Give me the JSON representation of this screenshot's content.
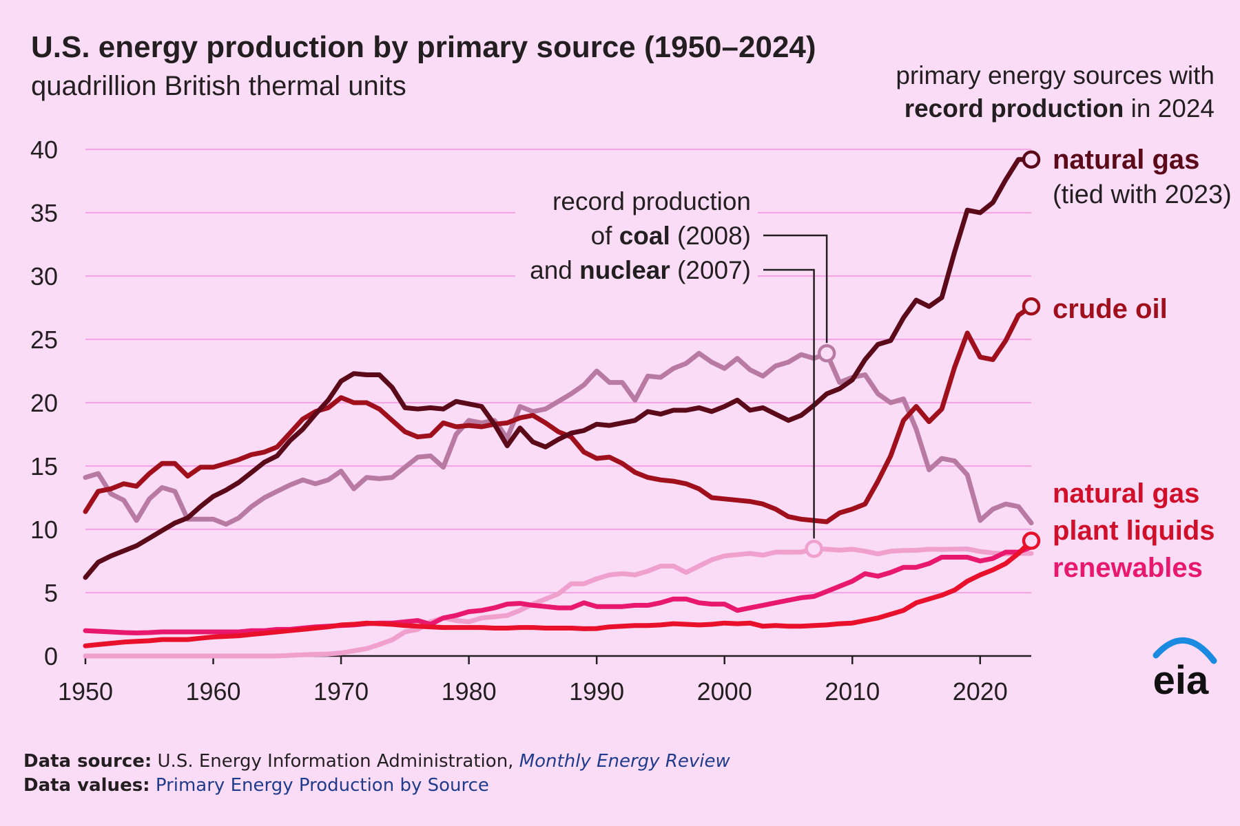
{
  "title": "U.S. energy production by primary source (1950–2024)",
  "subtitle": "quadrillion British thermal units",
  "record_note": {
    "line1": "primary energy sources with",
    "line2_bold": "record production",
    "line2_rest": " in 2024"
  },
  "coal_nuclear_note": {
    "line1": "record production",
    "line2_pre": "of ",
    "line2_bold": "coal",
    "line2_post": " (2008)",
    "line3_pre": "and ",
    "line3_bold": "nuclear",
    "line3_post": " (2007)"
  },
  "series_labels": {
    "natural_gas": "natural gas",
    "natural_gas_note": "(tied with 2023)",
    "crude_oil": "crude oil",
    "ngpl_line1": "natural gas",
    "ngpl_line2": "plant liquids",
    "renewables": "renewables"
  },
  "footer": {
    "source_label": "Data source:",
    "source_text": " U.S. Energy Information Administration, ",
    "source_link": "Monthly Energy Review",
    "values_label": "Data values:",
    "values_link": "Primary Energy Production by Source"
  },
  "logo_text": "eia",
  "chart_data": {
    "type": "line",
    "xlabel": "",
    "ylabel": "",
    "xlim": [
      1950,
      2024
    ],
    "ylim": [
      0,
      40
    ],
    "x_ticks": [
      1950,
      1960,
      1970,
      1980,
      1990,
      2000,
      2010,
      2020
    ],
    "y_ticks": [
      0,
      5,
      10,
      15,
      20,
      25,
      30,
      35,
      40
    ],
    "grid": "horizontal",
    "colors": {
      "coal": "#b87aa3",
      "nuclear": "#f0a0cc",
      "crude_oil": "#a0101c",
      "natural_gas": "#5a0a18",
      "ngpl": "#e8102a",
      "renewables": "#e8186e"
    },
    "x": [
      1950,
      1951,
      1952,
      1953,
      1954,
      1955,
      1956,
      1957,
      1958,
      1959,
      1960,
      1961,
      1962,
      1963,
      1964,
      1965,
      1966,
      1967,
      1968,
      1969,
      1970,
      1971,
      1972,
      1973,
      1974,
      1975,
      1976,
      1977,
      1978,
      1979,
      1980,
      1981,
      1982,
      1983,
      1984,
      1985,
      1986,
      1987,
      1988,
      1989,
      1990,
      1991,
      1992,
      1993,
      1994,
      1995,
      1996,
      1997,
      1998,
      1999,
      2000,
      2001,
      2002,
      2003,
      2004,
      2005,
      2006,
      2007,
      2008,
      2009,
      2010,
      2011,
      2012,
      2013,
      2014,
      2015,
      2016,
      2017,
      2018,
      2019,
      2020,
      2021,
      2022,
      2023,
      2024
    ],
    "series": [
      {
        "name": "coal",
        "values": [
          14.1,
          14.4,
          12.8,
          12.3,
          10.7,
          12.4,
          13.3,
          13.0,
          10.8,
          10.8,
          10.8,
          10.4,
          10.9,
          11.8,
          12.5,
          13.0,
          13.5,
          13.9,
          13.6,
          13.9,
          14.6,
          13.2,
          14.1,
          14.0,
          14.1,
          14.9,
          15.7,
          15.8,
          14.9,
          17.5,
          18.6,
          18.4,
          18.6,
          17.2,
          19.7,
          19.3,
          19.5,
          20.1,
          20.7,
          21.4,
          22.5,
          21.6,
          21.6,
          20.2,
          22.1,
          22.0,
          22.7,
          23.1,
          23.9,
          23.2,
          22.7,
          23.5,
          22.6,
          22.1,
          22.9,
          23.2,
          23.8,
          23.5,
          23.9,
          21.6,
          22.0,
          22.2,
          20.7,
          20.0,
          20.3,
          17.9,
          14.7,
          15.6,
          15.4,
          14.3,
          10.7,
          11.6,
          12.0,
          11.8,
          10.5
        ]
      },
      {
        "name": "nuclear",
        "values": [
          0,
          0,
          0,
          0,
          0,
          0,
          0,
          0,
          0,
          0,
          0,
          0,
          0,
          0,
          0,
          0,
          0.05,
          0.09,
          0.13,
          0.15,
          0.24,
          0.41,
          0.58,
          0.91,
          1.27,
          1.9,
          2.1,
          2.7,
          3.0,
          2.8,
          2.7,
          3.0,
          3.1,
          3.2,
          3.6,
          4.1,
          4.5,
          4.9,
          5.7,
          5.7,
          6.1,
          6.4,
          6.5,
          6.4,
          6.7,
          7.1,
          7.1,
          6.6,
          7.1,
          7.6,
          7.9,
          8.0,
          8.1,
          7.96,
          8.2,
          8.2,
          8.2,
          8.46,
          8.43,
          8.36,
          8.43,
          8.27,
          8.06,
          8.27,
          8.33,
          8.34,
          8.43,
          8.42,
          8.44,
          8.45,
          8.25,
          8.13,
          8.06,
          8.1,
          8.1
        ]
      },
      {
        "name": "crude oil",
        "values": [
          11.4,
          13.0,
          13.2,
          13.6,
          13.4,
          14.4,
          15.2,
          15.2,
          14.2,
          14.9,
          14.9,
          15.2,
          15.5,
          15.9,
          16.1,
          16.5,
          17.6,
          18.7,
          19.3,
          19.6,
          20.4,
          20.0,
          20.0,
          19.5,
          18.6,
          17.7,
          17.3,
          17.4,
          18.4,
          18.1,
          18.2,
          18.1,
          18.3,
          18.4,
          18.8,
          19.0,
          18.4,
          17.7,
          17.3,
          16.1,
          15.6,
          15.7,
          15.2,
          14.5,
          14.1,
          13.9,
          13.8,
          13.6,
          13.2,
          12.5,
          12.4,
          12.3,
          12.2,
          12.0,
          11.6,
          11.0,
          10.8,
          10.7,
          10.6,
          11.3,
          11.6,
          12.0,
          13.8,
          15.8,
          18.6,
          19.7,
          18.5,
          19.5,
          22.8,
          25.5,
          23.6,
          23.4,
          24.9,
          26.9,
          27.6
        ]
      },
      {
        "name": "natural gas",
        "values": [
          6.2,
          7.4,
          7.9,
          8.3,
          8.7,
          9.3,
          9.9,
          10.5,
          10.9,
          11.8,
          12.6,
          13.1,
          13.7,
          14.5,
          15.3,
          15.8,
          17.0,
          17.9,
          19.1,
          20.2,
          21.7,
          22.3,
          22.2,
          22.2,
          21.2,
          19.6,
          19.5,
          19.6,
          19.5,
          20.1,
          19.9,
          19.7,
          18.3,
          16.6,
          18.0,
          16.9,
          16.5,
          17.1,
          17.6,
          17.8,
          18.3,
          18.2,
          18.4,
          18.6,
          19.3,
          19.1,
          19.4,
          19.4,
          19.6,
          19.3,
          19.7,
          20.2,
          19.4,
          19.6,
          19.1,
          18.6,
          19.0,
          19.8,
          20.7,
          21.1,
          21.8,
          23.4,
          24.6,
          24.9,
          26.7,
          28.1,
          27.6,
          28.3,
          31.9,
          35.2,
          35.0,
          35.8,
          37.6,
          39.2,
          39.2
        ]
      },
      {
        "name": "natural gas plant liquids",
        "values": [
          0.8,
          0.9,
          1.0,
          1.1,
          1.15,
          1.2,
          1.3,
          1.3,
          1.3,
          1.4,
          1.5,
          1.55,
          1.6,
          1.7,
          1.8,
          1.9,
          2.0,
          2.1,
          2.2,
          2.3,
          2.45,
          2.5,
          2.6,
          2.55,
          2.5,
          2.4,
          2.35,
          2.3,
          2.25,
          2.25,
          2.25,
          2.25,
          2.2,
          2.2,
          2.25,
          2.25,
          2.2,
          2.2,
          2.2,
          2.15,
          2.17,
          2.3,
          2.35,
          2.4,
          2.4,
          2.45,
          2.55,
          2.5,
          2.45,
          2.5,
          2.6,
          2.55,
          2.6,
          2.35,
          2.4,
          2.35,
          2.35,
          2.4,
          2.45,
          2.55,
          2.6,
          2.8,
          3.0,
          3.3,
          3.6,
          4.2,
          4.5,
          4.8,
          5.2,
          5.9,
          6.4,
          6.8,
          7.3,
          8.1,
          9.1
        ]
      },
      {
        "name": "renewables",
        "values": [
          2.0,
          1.95,
          1.9,
          1.85,
          1.82,
          1.85,
          1.9,
          1.9,
          1.9,
          1.9,
          1.9,
          1.9,
          1.9,
          2.0,
          2.0,
          2.1,
          2.1,
          2.2,
          2.3,
          2.35,
          2.4,
          2.45,
          2.55,
          2.6,
          2.6,
          2.7,
          2.8,
          2.5,
          3.0,
          3.2,
          3.5,
          3.6,
          3.8,
          4.1,
          4.15,
          4.0,
          3.9,
          3.8,
          3.8,
          4.2,
          3.9,
          3.9,
          3.9,
          4.0,
          4.0,
          4.2,
          4.5,
          4.5,
          4.2,
          4.1,
          4.1,
          3.6,
          3.8,
          4.0,
          4.2,
          4.4,
          4.6,
          4.7,
          5.1,
          5.5,
          5.9,
          6.5,
          6.3,
          6.6,
          7.0,
          7.0,
          7.3,
          7.8,
          7.8,
          7.8,
          7.5,
          7.7,
          8.2,
          8.2,
          8.6
        ]
      }
    ],
    "record_markers": [
      {
        "series": "natural gas",
        "x": 2024,
        "y": 39.2
      },
      {
        "series": "crude oil",
        "x": 2024,
        "y": 27.6
      },
      {
        "series": "natural gas plant liquids",
        "x": 2024,
        "y": 9.1
      },
      {
        "series": "coal",
        "x": 2008,
        "y": 23.9
      },
      {
        "series": "nuclear",
        "x": 2007,
        "y": 8.46
      }
    ]
  }
}
